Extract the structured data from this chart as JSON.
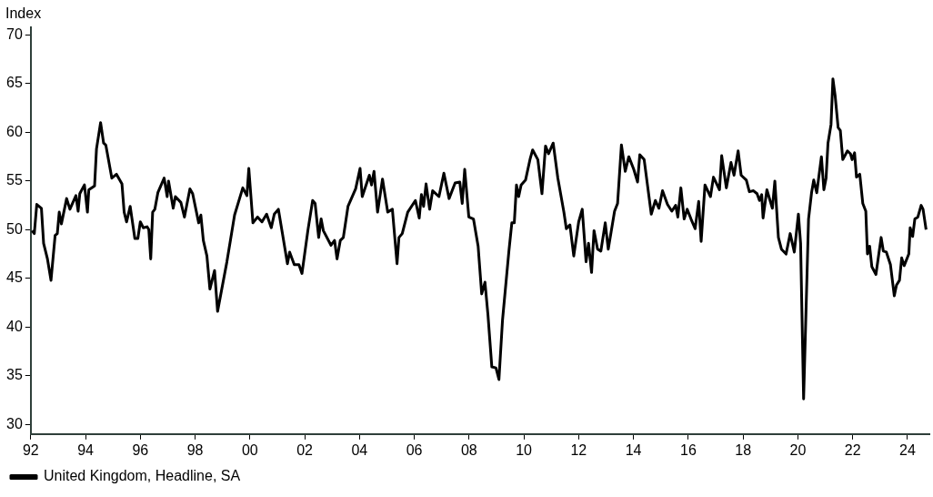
{
  "chart_data": {
    "type": "line",
    "ylabel": "Index",
    "legend": "bottom",
    "marker": "none",
    "line_style": "solid",
    "xlim": [
      1992,
      2024.8
    ],
    "ylim": [
      29,
      70.8
    ],
    "xticks": [
      {
        "value": 1992,
        "label": "92"
      },
      {
        "value": 1994,
        "label": "94"
      },
      {
        "value": 1996,
        "label": "96"
      },
      {
        "value": 1998,
        "label": "98"
      },
      {
        "value": 2000,
        "label": "00"
      },
      {
        "value": 2002,
        "label": "02"
      },
      {
        "value": 2004,
        "label": "04"
      },
      {
        "value": 2006,
        "label": "06"
      },
      {
        "value": 2008,
        "label": "08"
      },
      {
        "value": 2010,
        "label": "10"
      },
      {
        "value": 2012,
        "label": "12"
      },
      {
        "value": 2014,
        "label": "14"
      },
      {
        "value": 2016,
        "label": "16"
      },
      {
        "value": 2018,
        "label": "18"
      },
      {
        "value": 2020,
        "label": "20"
      },
      {
        "value": 2022,
        "label": "22"
      },
      {
        "value": 2024,
        "label": "24"
      }
    ],
    "yticks": [
      30,
      35,
      40,
      45,
      50,
      55,
      60,
      65,
      70
    ],
    "series": [
      {
        "name": "United Kingdom, Headline, SA",
        "color": "#000000",
        "x": [
          1992.05,
          1992.13,
          1992.22,
          1992.39,
          1992.47,
          1992.61,
          1992.74,
          1992.89,
          1992.97,
          1993.04,
          1993.12,
          1993.31,
          1993.43,
          1993.65,
          1993.73,
          1993.79,
          1993.96,
          1994.07,
          1994.12,
          1994.33,
          1994.4,
          1994.55,
          1994.66,
          1994.74,
          1994.96,
          1995.13,
          1995.33,
          1995.41,
          1995.5,
          1995.63,
          1995.8,
          1995.91,
          1996,
          1996.11,
          1996.25,
          1996.31,
          1996.38,
          1996.45,
          1996.53,
          1996.64,
          1996.87,
          1996.98,
          1997.03,
          1997.2,
          1997.28,
          1997.48,
          1997.61,
          1997.81,
          1997.91,
          1998.13,
          1998.21,
          1998.3,
          1998.43,
          1998.54,
          1998.71,
          1998.82,
          1999.16,
          1999.44,
          1999.74,
          1999.89,
          1999.96,
          2000.11,
          2000.28,
          2000.44,
          2000.61,
          2000.78,
          2000.89,
          2001.04,
          2001.37,
          2001.45,
          2001.62,
          2001.79,
          2001.9,
          2002.12,
          2002.29,
          2002.38,
          2002.51,
          2002.6,
          2002.68,
          2002.96,
          2003.09,
          2003.18,
          2003.3,
          2003.41,
          2003.58,
          2003.86,
          2004.02,
          2004.1,
          2004.36,
          2004.44,
          2004.53,
          2004.66,
          2004.84,
          2005.03,
          2005.2,
          2005.37,
          2005.44,
          2005.56,
          2005.76,
          2006.04,
          2006.18,
          2006.26,
          2006.34,
          2006.43,
          2006.56,
          2006.67,
          2006.9,
          2007.08,
          2007.27,
          2007.49,
          2007.66,
          2007.75,
          2007.84,
          2007.99,
          2008.16,
          2008.33,
          2008.46,
          2008.58,
          2008.69,
          2008.83,
          2008.98,
          2009.09,
          2009.22,
          2009.45,
          2009.56,
          2009.65,
          2009.73,
          2009.81,
          2009.9,
          2010.06,
          2010.23,
          2010.32,
          2010.51,
          2010.66,
          2010.79,
          2010.9,
          2011.07,
          2011.24,
          2011.46,
          2011.55,
          2011.68,
          2011.82,
          2012,
          2012.13,
          2012.27,
          2012.36,
          2012.47,
          2012.56,
          2012.69,
          2012.81,
          2012.97,
          2013.08,
          2013.31,
          2013.42,
          2013.56,
          2013.7,
          2013.83,
          2014.01,
          2014.15,
          2014.23,
          2014.39,
          2014.65,
          2014.8,
          2014.93,
          2015.06,
          2015.24,
          2015.4,
          2015.54,
          2015.62,
          2015.73,
          2015.85,
          2015.96,
          2016.1,
          2016.25,
          2016.38,
          2016.47,
          2016.61,
          2016.81,
          2016.92,
          2017.14,
          2017.22,
          2017.39,
          2017.56,
          2017.67,
          2017.82,
          2017.93,
          2018.12,
          2018.23,
          2018.38,
          2018.51,
          2018.6,
          2018.68,
          2018.73,
          2018.87,
          2019.07,
          2019.16,
          2019.29,
          2019.4,
          2019.57,
          2019.72,
          2019.87,
          2020.02,
          2020.1,
          2020.21,
          2020.39,
          2020.5,
          2020.58,
          2020.69,
          2020.86,
          2020.95,
          2021.03,
          2021.1,
          2021.21,
          2021.28,
          2021.36,
          2021.47,
          2021.55,
          2021.64,
          2021.81,
          2021.92,
          2021.98,
          2022.07,
          2022.14,
          2022.26,
          2022.37,
          2022.48,
          2022.54,
          2022.62,
          2022.7,
          2022.85,
          2023.04,
          2023.12,
          2023.23,
          2023.38,
          2023.52,
          2023.6,
          2023.71,
          2023.79,
          2023.88,
          2024.05,
          2024.1,
          2024.19,
          2024.27,
          2024.38,
          2024.5,
          2024.57,
          2024.68
        ],
        "values": [
          49.9,
          49.6,
          52.6,
          52.2,
          48.6,
          47,
          44.8,
          49.4,
          49.6,
          51.8,
          50.6,
          53.2,
          52.1,
          53.5,
          51.9,
          53.7,
          54.6,
          51.8,
          54.1,
          54.5,
          58.3,
          61,
          58.9,
          58.7,
          55.3,
          55.7,
          54.7,
          51.8,
          50.8,
          52.4,
          49.1,
          49.1,
          50.8,
          50.2,
          50.3,
          50,
          47,
          51.8,
          52.1,
          53.8,
          55.3,
          53.4,
          55,
          52.2,
          53.4,
          52.8,
          51.3,
          54.2,
          53.7,
          50.7,
          51.5,
          48.9,
          47.3,
          43.9,
          45.8,
          41.6,
          46.7,
          51.5,
          54.3,
          53.5,
          56.3,
          50.7,
          51.3,
          50.8,
          51.6,
          50.2,
          51.6,
          52.1,
          46.5,
          47.7,
          46.4,
          46.4,
          45.5,
          50,
          53,
          52.7,
          49.2,
          51.1,
          49.9,
          48.4,
          48.9,
          47,
          48.9,
          49.2,
          52.4,
          54.2,
          56.3,
          53.4,
          55.6,
          54.6,
          56,
          51.8,
          55.2,
          51.8,
          52.1,
          46.5,
          49.2,
          49.6,
          51.8,
          53,
          51.2,
          53.6,
          52.4,
          54.7,
          52.1,
          54,
          53.4,
          55.8,
          53.2,
          54.8,
          54.9,
          52.7,
          56.2,
          51.3,
          51.1,
          48.3,
          43.4,
          44.6,
          41.2,
          35.9,
          35.8,
          34.6,
          40.7,
          47.7,
          50.7,
          50.7,
          54.6,
          53.4,
          54.6,
          55.1,
          57.3,
          58.2,
          57.2,
          53.7,
          58.6,
          57.8,
          58.9,
          55.3,
          51.8,
          50.1,
          50.5,
          47.3,
          50.8,
          52.1,
          46.7,
          48.6,
          45.6,
          49.9,
          48,
          47.8,
          50.7,
          48,
          51.9,
          52.7,
          58.7,
          56,
          57.5,
          56.2,
          54.9,
          57.7,
          57.2,
          51.6,
          53,
          52.2,
          54,
          52.6,
          51.9,
          52.5,
          51.3,
          54.3,
          51.1,
          52.1,
          51.1,
          50.1,
          52.9,
          48.8,
          54.6,
          53.4,
          55.4,
          54.1,
          57.6,
          54.3,
          56.9,
          55.6,
          58.1,
          55.6,
          55.1,
          53.9,
          54,
          53.7,
          53,
          53.6,
          51.2,
          54.1,
          52.2,
          55,
          49.2,
          48,
          47.5,
          49.6,
          47.7,
          51.6,
          48.6,
          32.6,
          51.1,
          53.8,
          55.1,
          53.8,
          57.5,
          54.1,
          55.3,
          58.9,
          60.8,
          65.5,
          63.8,
          60.5,
          60.2,
          57.2,
          58.1,
          57.8,
          57.2,
          57.9,
          55.4,
          55.7,
          52.7,
          51.9,
          47.5,
          48.3,
          46.2,
          45.4,
          49.2,
          47.8,
          47.7,
          46.4,
          43.2,
          44.3,
          44.8,
          47.1,
          46.3,
          47.5,
          50.2,
          49.3,
          51.1,
          51.3,
          52.5,
          52.1,
          50
        ]
      }
    ]
  }
}
